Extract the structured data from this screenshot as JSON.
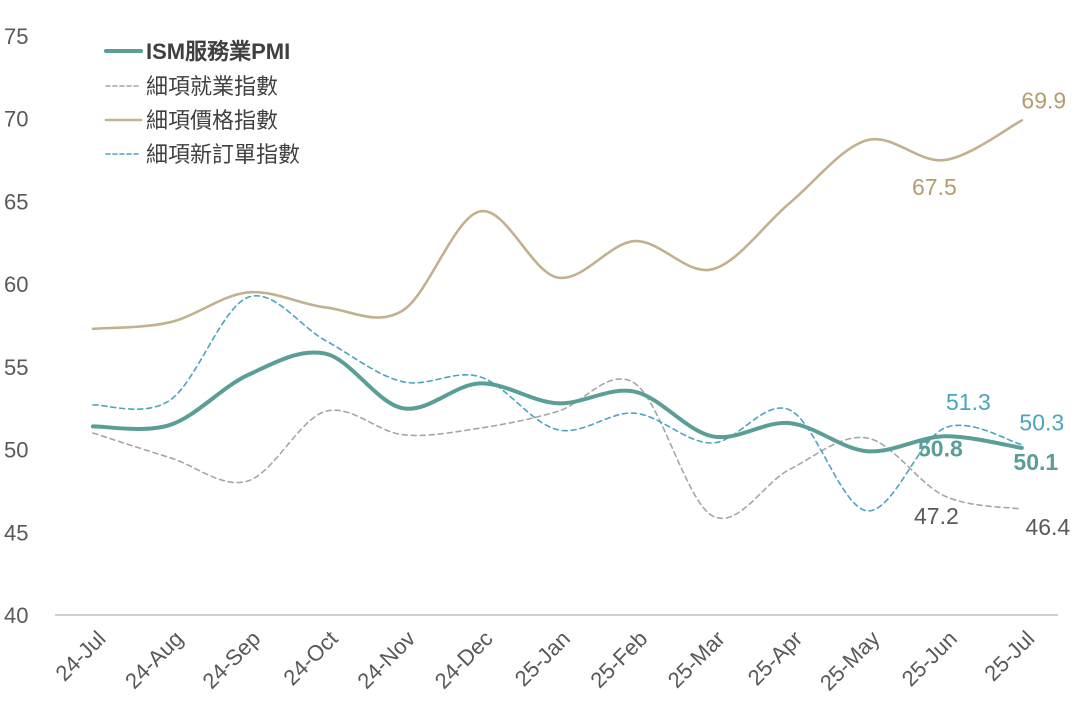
{
  "chart_data": {
    "type": "line",
    "title": "",
    "xlabel": "",
    "ylabel": "",
    "ylim": [
      40,
      75
    ],
    "yticks": [
      40,
      45,
      50,
      55,
      60,
      65,
      70,
      75
    ],
    "grid": false,
    "legend_position": "top-left",
    "categories": [
      "24-Jul",
      "24-Aug",
      "24-Sep",
      "24-Oct",
      "24-Nov",
      "24-Dec",
      "25-Jan",
      "25-Feb",
      "25-Mar",
      "25-Apr",
      "25-May",
      "25-Jun",
      "25-Jul"
    ],
    "series": [
      {
        "name": "ISM服務業PMI",
        "color": "#5a9e97",
        "style": "solid-thick",
        "values": [
          51.4,
          51.5,
          54.5,
          55.8,
          52.5,
          54.0,
          52.8,
          53.5,
          50.8,
          51.6,
          49.9,
          50.8,
          50.1
        ],
        "labels": [
          {
            "index": 11,
            "text": "50.8"
          },
          {
            "index": 12,
            "text": "50.1"
          }
        ]
      },
      {
        "name": "細項就業指數",
        "color": "#a6a6a6",
        "style": "dashed",
        "values": [
          51.0,
          49.5,
          48.1,
          52.3,
          50.9,
          51.3,
          52.3,
          54.0,
          46.0,
          48.8,
          50.7,
          47.2,
          46.4
        ],
        "labels": [
          {
            "index": 11,
            "text": "47.2"
          },
          {
            "index": 12,
            "text": "46.4"
          }
        ]
      },
      {
        "name": "細項價格指數",
        "color": "#c2b18e",
        "style": "solid",
        "values": [
          57.3,
          57.7,
          59.5,
          58.6,
          58.4,
          64.4,
          60.4,
          62.6,
          60.9,
          64.9,
          68.7,
          67.5,
          69.9
        ],
        "labels": [
          {
            "index": 11,
            "text": "67.5"
          },
          {
            "index": 12,
            "text": "69.9"
          }
        ]
      },
      {
        "name": "細項新訂單指數",
        "color": "#4aa5bd",
        "style": "dashed",
        "values": [
          52.7,
          53.0,
          59.2,
          56.6,
          54.1,
          54.4,
          51.2,
          52.2,
          50.4,
          52.4,
          46.3,
          51.3,
          50.3
        ],
        "labels": [
          {
            "index": 11,
            "text": "51.3"
          },
          {
            "index": 12,
            "text": "50.3"
          }
        ]
      }
    ]
  }
}
